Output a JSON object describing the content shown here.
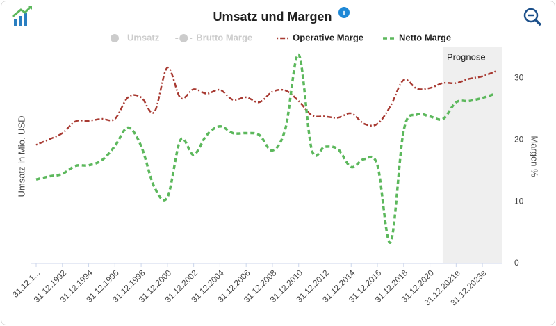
{
  "chart_data": {
    "type": "line",
    "title": "Umsatz und Margen",
    "y_label": "Umsatz in Mio. USD",
    "y2_label": "Margen %",
    "hidden_series": [
      "Umsatz",
      "Brutto Marge"
    ],
    "forecast": {
      "label": "Prognose",
      "start_index": 31
    },
    "categories": [
      "31.12.1...",
      null,
      "31.12.1992",
      null,
      "31.12.1994",
      null,
      "31.12.1996",
      null,
      "31.12.1998",
      null,
      "31.12.2000",
      null,
      "31.12.2002",
      null,
      "31.12.2004",
      null,
      "31.12.2006",
      null,
      "31.12.2008",
      null,
      "31.12.2010",
      null,
      "31.12.2012",
      null,
      "31.12.2014",
      null,
      "31.12.2016",
      null,
      "31.12.2018",
      null,
      "31.12.2020",
      null,
      "31.12.2021e",
      null,
      "31.12.2023e",
      null
    ],
    "series": [
      {
        "name": "Operative Marge",
        "color": "#a83a32",
        "axis": "y2",
        "values": [
          19.2,
          20.1,
          21.1,
          23.0,
          23.1,
          23.4,
          23.4,
          26.9,
          26.9,
          24.5,
          31.7,
          26.8,
          28.2,
          27.5,
          28.1,
          26.5,
          26.9,
          26.1,
          27.8,
          28.0,
          26.3,
          24.0,
          23.8,
          23.6,
          24.3,
          22.6,
          22.6,
          25.5,
          29.7,
          28.3,
          28.4,
          29.2,
          29.2,
          29.9,
          30.3,
          31.1
        ]
      },
      {
        "name": "Netto Marge",
        "color": "#5cb85c",
        "axis": "y2",
        "values": [
          13.6,
          14.1,
          14.5,
          15.8,
          15.9,
          16.7,
          19.0,
          22.0,
          19.0,
          12.4,
          10.7,
          20.0,
          17.6,
          20.8,
          22.2,
          21.1,
          21.1,
          20.8,
          18.3,
          21.9,
          33.8,
          18.4,
          18.9,
          18.5,
          15.6,
          16.9,
          15.9,
          3.4,
          21.5,
          24.1,
          23.8,
          23.4,
          26.1,
          26.3,
          26.8,
          27.5
        ]
      }
    ],
    "y2lim": [
      0,
      35
    ],
    "y2ticks": [
      0,
      10,
      20,
      30
    ]
  }
}
